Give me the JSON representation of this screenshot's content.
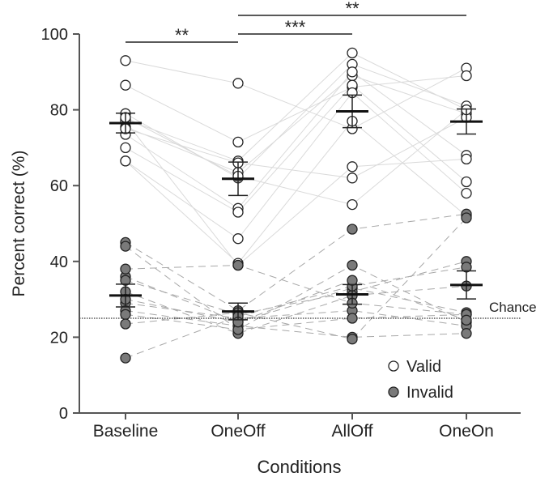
{
  "chart_data": {
    "type": "scatter",
    "xlabel": "Conditions",
    "ylabel": "Percent correct (%)",
    "categories": [
      "Baseline",
      "OneOff",
      "AllOff",
      "OneOn"
    ],
    "ylim": [
      0,
      100
    ],
    "yticks": [
      0,
      20,
      40,
      60,
      80,
      100
    ],
    "chance": {
      "value": 25,
      "label": "Chance"
    },
    "series": [
      {
        "name": "Valid",
        "fill": "#ffffff",
        "line_style": "solid",
        "means": [
          76.5,
          61.8,
          79.6,
          76.9
        ],
        "sem": [
          2.6,
          4.4,
          4.3,
          3.3
        ],
        "subjects": [
          [
            93,
            87,
            75,
            91
          ],
          [
            86.5,
            71.5,
            86,
            89
          ],
          [
            79,
            62,
            92,
            81
          ],
          [
            77.5,
            66.5,
            95,
            80
          ],
          [
            75.5,
            63.5,
            89,
            79
          ],
          [
            73.5,
            54,
            90,
            68
          ],
          [
            70,
            53,
            86.5,
            61
          ],
          [
            66.5,
            46,
            84.5,
            58
          ],
          [
            66.5,
            39.5,
            77,
            52
          ],
          [
            77,
            39,
            65,
            67
          ],
          [
            75,
            66,
            62,
            78
          ],
          [
            78,
            62.5,
            55,
            80
          ]
        ]
      },
      {
        "name": "Invalid",
        "fill": "#7a7a7a",
        "line_style": "dashed",
        "means": [
          31,
          26.8,
          31.3,
          33.8
        ],
        "sem": [
          3,
          2.2,
          2.6,
          3.7
        ],
        "subjects": [
          [
            45,
            27,
            48.5,
            52.5
          ],
          [
            44,
            22,
            39,
            24
          ],
          [
            36,
            24,
            33,
            26.5
          ],
          [
            35,
            26,
            32,
            40
          ],
          [
            32,
            21,
            31,
            33.5
          ],
          [
            29,
            25,
            27,
            23
          ],
          [
            27,
            23,
            20,
            21
          ],
          [
            26,
            22,
            25,
            26
          ],
          [
            23.5,
            26.5,
            19.5,
            51.5
          ],
          [
            14.5,
            25.5,
            33.5,
            38.5
          ],
          [
            38,
            39,
            29,
            26
          ],
          [
            30,
            24,
            35,
            24.5
          ]
        ]
      }
    ],
    "significance": [
      {
        "from": 0,
        "to": 1,
        "label": "**"
      },
      {
        "from": 1,
        "to": 2,
        "label": "***"
      },
      {
        "from": 1,
        "to": 3,
        "label": "**"
      }
    ],
    "legend": {
      "position": "bottom-right",
      "items": [
        "Valid",
        "Invalid"
      ]
    }
  }
}
